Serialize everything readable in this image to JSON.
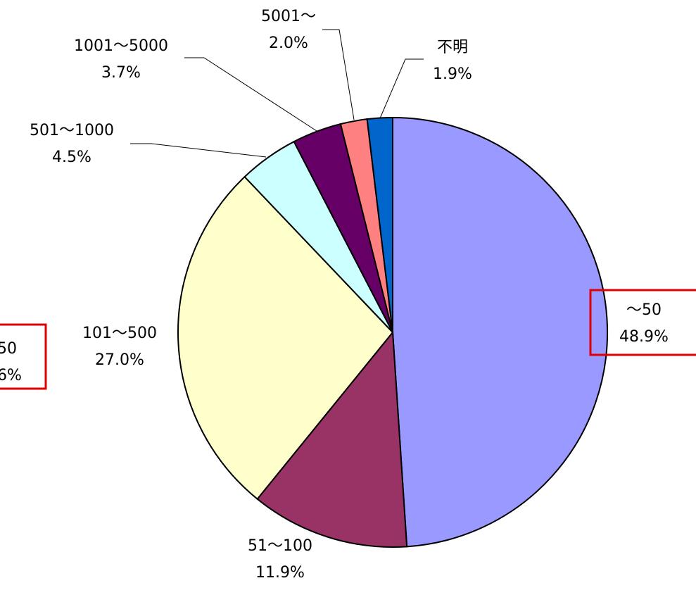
{
  "chart_data": {
    "type": "pie",
    "start": "12 o'clock",
    "direction": "clockwise",
    "slices": [
      {
        "label": "～50",
        "pct_label": "48.9%",
        "value": 48.9,
        "color": "#9999FF"
      },
      {
        "label": "51～100",
        "pct_label": "11.9%",
        "value": 11.9,
        "color": "#993366"
      },
      {
        "label": "101～500",
        "pct_label": "27.0%",
        "value": 27.0,
        "color": "#FFFFCC"
      },
      {
        "label": "501～1000",
        "pct_label": "4.5%",
        "value": 4.5,
        "color": "#CCFFFF"
      },
      {
        "label": "1001～5000",
        "pct_label": "3.7%",
        "value": 3.7,
        "color": "#660066"
      },
      {
        "label": "5001～",
        "pct_label": "2.0%",
        "value": 2.0,
        "color": "#FF8080"
      },
      {
        "label": "不明",
        "pct_label": "1.9%",
        "value": 1.9,
        "color": "#0066CC"
      }
    ],
    "highlighted": [
      "～50"
    ],
    "partial_left_label": {
      "line1": "50",
      "line2": "6%"
    },
    "highlight_color": "#E00000"
  }
}
